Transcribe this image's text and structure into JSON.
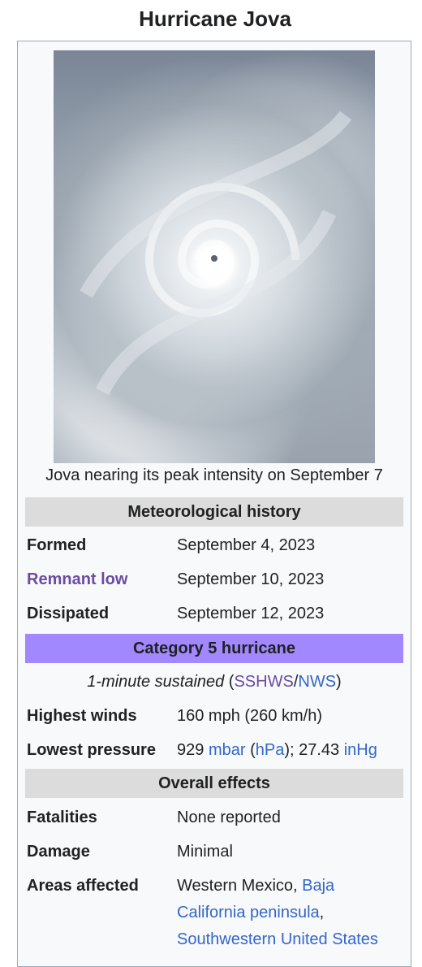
{
  "title": "Hurricane Jova",
  "image_caption": "Jova nearing its peak intensity on September 7",
  "sections": {
    "meteorological_history": "Meteorological history",
    "category": "Category 5 hurricane",
    "overall_effects": "Overall effects"
  },
  "rows": {
    "formed": {
      "label": "Formed",
      "value": "September 4, 2023"
    },
    "remnant_low": {
      "label": "Remnant low",
      "value": "September 10, 2023"
    },
    "dissipated": {
      "label": "Dissipated",
      "value": "September 12, 2023"
    },
    "highest_winds": {
      "label": "Highest winds",
      "value": "160 mph (260 km/h)"
    },
    "lowest_pressure": {
      "label": "Lowest pressure",
      "value_prefix": "929 ",
      "mbar": "mbar",
      "paren_open": " (",
      "hpa": "hPa",
      "paren_close_rest": "); 27.43 ",
      "inhg": "inHg"
    },
    "fatalities": {
      "label": "Fatalities",
      "value": "None reported"
    },
    "damage": {
      "label": "Damage",
      "value": "Minimal"
    },
    "areas_affected": {
      "label": "Areas affected",
      "line1_plain": "Western Mexico, ",
      "line1_link": "Baja",
      "line2_link": "California peninsula",
      "line2_plain": ",",
      "line3_link": "Southwestern United States"
    }
  },
  "sustained_note": {
    "italic": "1-minute sustained",
    "open": " (",
    "sshws": "SSHWS",
    "slash": "/",
    "nws": "NWS",
    "close": ")"
  }
}
